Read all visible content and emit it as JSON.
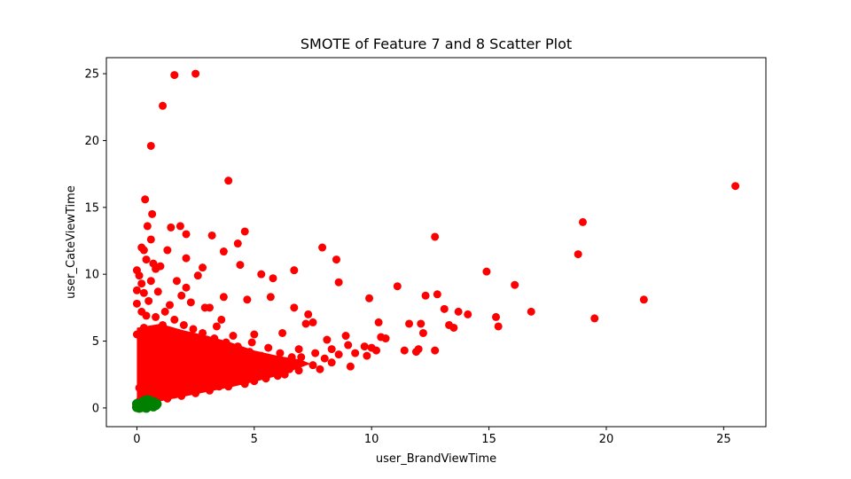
{
  "chart_data": {
    "type": "scatter",
    "title": "SMOTE of Feature 7 and 8 Scatter Plot",
    "xlabel": "user_BrandViewTime",
    "ylabel": "user_CateViewTime",
    "xlim": [
      -1.3,
      26.8
    ],
    "ylim": [
      -1.4,
      26.2
    ],
    "xticks": [
      0,
      5,
      10,
      15,
      20,
      25
    ],
    "yticks": [
      0,
      5,
      10,
      15,
      20,
      25
    ],
    "grid": false,
    "series": [
      {
        "color": "#ff0000",
        "points": [
          [
            1.6,
            24.9
          ],
          [
            2.5,
            25.0
          ],
          [
            1.1,
            22.6
          ],
          [
            0.6,
            19.6
          ],
          [
            3.9,
            17.0
          ],
          [
            25.5,
            16.6
          ],
          [
            0.35,
            15.6
          ],
          [
            0.65,
            14.5
          ],
          [
            19.0,
            13.9
          ],
          [
            1.45,
            13.5
          ],
          [
            1.85,
            13.6
          ],
          [
            2.1,
            13.0
          ],
          [
            3.2,
            12.9
          ],
          [
            4.6,
            13.2
          ],
          [
            0.45,
            13.6
          ],
          [
            0.6,
            12.6
          ],
          [
            12.7,
            12.8
          ],
          [
            4.3,
            12.3
          ],
          [
            0.2,
            12.0
          ],
          [
            0.3,
            11.8
          ],
          [
            1.3,
            11.8
          ],
          [
            3.7,
            11.7
          ],
          [
            7.9,
            12.0
          ],
          [
            0.4,
            11.1
          ],
          [
            2.1,
            11.2
          ],
          [
            8.5,
            11.1
          ],
          [
            18.8,
            11.5
          ],
          [
            0.7,
            10.8
          ],
          [
            4.4,
            10.7
          ],
          [
            1.0,
            10.6
          ],
          [
            2.8,
            10.5
          ],
          [
            0.8,
            10.4
          ],
          [
            0.0,
            10.3
          ],
          [
            6.7,
            10.3
          ],
          [
            14.9,
            10.2
          ],
          [
            0.1,
            9.9
          ],
          [
            2.6,
            9.9
          ],
          [
            5.3,
            10.0
          ],
          [
            5.8,
            9.7
          ],
          [
            0.6,
            9.5
          ],
          [
            1.7,
            9.5
          ],
          [
            0.2,
            9.3
          ],
          [
            8.6,
            9.4
          ],
          [
            11.1,
            9.1
          ],
          [
            16.1,
            9.2
          ],
          [
            2.1,
            9.0
          ],
          [
            0.3,
            8.6
          ],
          [
            5.7,
            8.3
          ],
          [
            3.7,
            8.3
          ],
          [
            4.7,
            8.1
          ],
          [
            9.9,
            8.2
          ],
          [
            12.3,
            8.4
          ],
          [
            12.8,
            8.5
          ],
          [
            21.6,
            8.1
          ],
          [
            2.3,
            7.9
          ],
          [
            0.0,
            7.8
          ],
          [
            1.4,
            7.7
          ],
          [
            2.9,
            7.5
          ],
          [
            3.1,
            7.5
          ],
          [
            6.7,
            7.5
          ],
          [
            13.1,
            7.4
          ],
          [
            13.7,
            7.2
          ],
          [
            16.8,
            7.2
          ],
          [
            14.1,
            7.0
          ],
          [
            7.3,
            7.0
          ],
          [
            15.3,
            6.8
          ],
          [
            19.5,
            6.7
          ],
          [
            3.6,
            6.6
          ],
          [
            10.3,
            6.4
          ],
          [
            11.6,
            6.3
          ],
          [
            12.1,
            6.3
          ],
          [
            13.3,
            6.2
          ],
          [
            15.4,
            6.1
          ],
          [
            13.5,
            6.0
          ],
          [
            7.2,
            6.3
          ],
          [
            7.5,
            6.4
          ],
          [
            12.2,
            5.6
          ],
          [
            10.4,
            5.3
          ],
          [
            10.6,
            5.2
          ],
          [
            8.9,
            5.4
          ],
          [
            9.7,
            4.6
          ],
          [
            10.0,
            4.5
          ],
          [
            11.4,
            4.3
          ],
          [
            11.9,
            4.2
          ],
          [
            12.0,
            4.4
          ],
          [
            12.7,
            4.3
          ],
          [
            9.1,
            3.1
          ],
          [
            8.3,
            3.4
          ],
          [
            7.5,
            3.2
          ],
          [
            7.8,
            2.9
          ],
          [
            6.9,
            2.8
          ],
          [
            6.3,
            2.5
          ],
          [
            5.5,
            2.2
          ],
          [
            4.6,
            1.8
          ],
          [
            3.9,
            1.6
          ],
          [
            3.1,
            1.3
          ],
          [
            2.5,
            1.1
          ],
          [
            1.9,
            0.9
          ],
          [
            1.3,
            0.7
          ],
          [
            0.8,
            0.45
          ],
          [
            0.2,
            0.2
          ],
          [
            0.0,
            0.1
          ],
          [
            0.0,
            5.5
          ],
          [
            0.3,
            6.0
          ],
          [
            0.8,
            6.8
          ],
          [
            1.2,
            7.2
          ],
          [
            1.6,
            6.6
          ],
          [
            2.0,
            6.2
          ],
          [
            2.4,
            5.9
          ],
          [
            2.8,
            5.6
          ],
          [
            3.3,
            5.2
          ],
          [
            3.8,
            4.9
          ],
          [
            4.3,
            4.6
          ],
          [
            4.8,
            4.2
          ],
          [
            5.3,
            3.9
          ],
          [
            5.8,
            3.6
          ],
          [
            6.3,
            3.4
          ],
          [
            6.8,
            3.2
          ],
          [
            0.5,
            4.5
          ],
          [
            1.0,
            4.0
          ],
          [
            1.5,
            3.5
          ],
          [
            2.0,
            3.0
          ],
          [
            2.5,
            2.8
          ],
          [
            3.0,
            2.5
          ],
          [
            3.5,
            2.3
          ],
          [
            4.0,
            2.1
          ],
          [
            4.5,
            2.0
          ],
          [
            5.0,
            2.0
          ],
          [
            5.5,
            2.6
          ],
          [
            6.0,
            2.4
          ],
          [
            0.2,
            3.0
          ],
          [
            0.4,
            2.2
          ],
          [
            0.7,
            1.6
          ],
          [
            1.1,
            1.4
          ],
          [
            1.5,
            1.6
          ],
          [
            2.2,
            1.9
          ],
          [
            0.1,
            1.5
          ],
          [
            0.3,
            0.9
          ],
          [
            0.6,
            1.1
          ],
          [
            0.9,
            2.5
          ],
          [
            1.3,
            2.2
          ],
          [
            1.8,
            2.4
          ],
          [
            2.3,
            4.0
          ],
          [
            2.7,
            3.6
          ],
          [
            3.2,
            3.3
          ],
          [
            3.6,
            3.0
          ],
          [
            4.1,
            2.8
          ],
          [
            4.6,
            2.6
          ],
          [
            5.1,
            3.0
          ],
          [
            6.5,
            2.9
          ],
          [
            7.0,
            3.8
          ],
          [
            8.0,
            3.7
          ],
          [
            8.6,
            4.0
          ],
          [
            9.3,
            4.1
          ],
          [
            9.8,
            3.9
          ],
          [
            10.2,
            4.3
          ],
          [
            9.0,
            4.7
          ],
          [
            8.3,
            4.4
          ],
          [
            0.5,
            8.0
          ],
          [
            0.9,
            8.7
          ],
          [
            1.9,
            8.4
          ],
          [
            0.0,
            8.8
          ],
          [
            0.2,
            7.2
          ],
          [
            3.4,
            6.1
          ],
          [
            4.1,
            5.4
          ],
          [
            4.9,
            4.9
          ],
          [
            5.6,
            4.5
          ],
          [
            6.1,
            4.1
          ],
          [
            6.6,
            3.8
          ],
          [
            7.6,
            4.1
          ],
          [
            8.1,
            5.1
          ],
          [
            6.2,
            5.6
          ],
          [
            5.0,
            5.5
          ],
          [
            6.9,
            4.4
          ],
          [
            1.4,
            5.2
          ],
          [
            1.9,
            5.0
          ],
          [
            2.6,
            4.6
          ],
          [
            0.7,
            5.6
          ],
          [
            1.1,
            6.2
          ],
          [
            0.4,
            6.9
          ],
          [
            0.6,
            3.3
          ],
          [
            1.2,
            2.9
          ],
          [
            2.9,
            4.3
          ],
          [
            3.4,
            4.0
          ],
          [
            4.4,
            3.4
          ],
          [
            4.8,
            3.1
          ],
          [
            5.4,
            2.9
          ],
          [
            5.9,
            3.1
          ],
          [
            2.0,
            1.3
          ],
          [
            2.7,
            1.8
          ],
          [
            3.5,
            1.6
          ],
          [
            4.2,
            2.4
          ],
          [
            1.6,
            1.0
          ],
          [
            0.5,
            0.7
          ],
          [
            0.1,
            0.5
          ],
          [
            0.3,
            1.9
          ],
          [
            0.8,
            3.8
          ],
          [
            1.7,
            4.3
          ],
          [
            2.1,
            3.8
          ],
          [
            2.5,
            3.3
          ]
        ]
      },
      {
        "color": "#008000",
        "points": [
          [
            0.0,
            0.05
          ],
          [
            0.05,
            0.1
          ],
          [
            0.1,
            0.15
          ],
          [
            0.15,
            0.2
          ],
          [
            0.2,
            0.25
          ],
          [
            0.25,
            0.3
          ],
          [
            0.3,
            0.35
          ],
          [
            0.35,
            0.4
          ],
          [
            0.4,
            0.45
          ],
          [
            0.45,
            0.5
          ],
          [
            0.5,
            0.45
          ],
          [
            0.55,
            0.4
          ],
          [
            0.6,
            0.35
          ],
          [
            0.65,
            0.3
          ],
          [
            0.7,
            0.3
          ],
          [
            0.75,
            0.25
          ],
          [
            0.8,
            0.2
          ],
          [
            0.3,
            0.1
          ],
          [
            0.4,
            0.15
          ],
          [
            0.5,
            0.2
          ],
          [
            0.6,
            0.15
          ],
          [
            0.2,
            0.05
          ],
          [
            0.1,
            0.0
          ],
          [
            0.35,
            0.55
          ],
          [
            0.45,
            0.6
          ],
          [
            0.55,
            0.55
          ],
          [
            0.65,
            0.45
          ],
          [
            0.25,
            0.45
          ],
          [
            0.15,
            0.35
          ],
          [
            0.05,
            0.25
          ],
          [
            0.85,
            0.3
          ],
          [
            0.75,
            0.4
          ],
          [
            0.0,
            0.3
          ],
          [
            0.7,
            0.1
          ],
          [
            0.4,
            0.0
          ]
        ]
      }
    ]
  }
}
